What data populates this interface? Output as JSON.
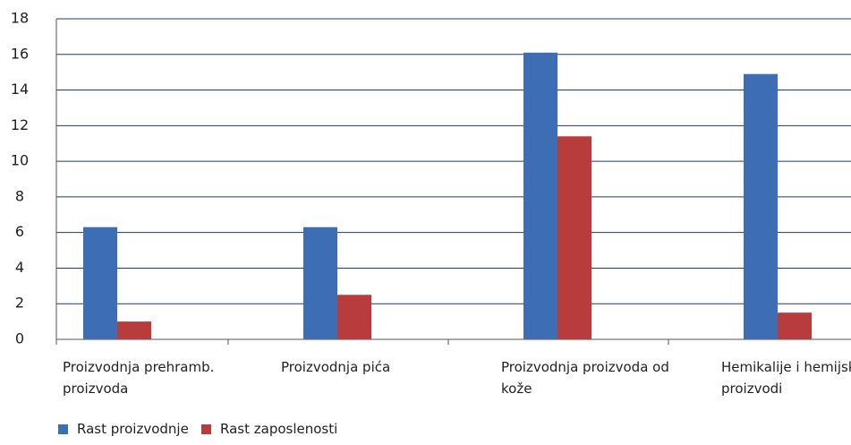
{
  "chart_data": {
    "type": "bar",
    "categories": [
      "Proizvodnja prehramb. proizvoda",
      "Proizvodnja pića",
      "Proizvodnja proizvoda od kože",
      "Hemikalije i hemijski proizvodi"
    ],
    "series": [
      {
        "name": "Rast proizvodnje",
        "color": "#3d6db5",
        "values": [
          6.3,
          6.3,
          16.1,
          14.9
        ]
      },
      {
        "name": "Rast zaposlenosti",
        "color": "#b83c3c",
        "values": [
          1.0,
          2.5,
          11.4,
          1.5
        ]
      }
    ],
    "ylim": [
      0,
      18
    ],
    "yticks": [
      0,
      2,
      4,
      6,
      8,
      10,
      12,
      14,
      16,
      18
    ],
    "grid": true,
    "legend": "bottom-left"
  }
}
